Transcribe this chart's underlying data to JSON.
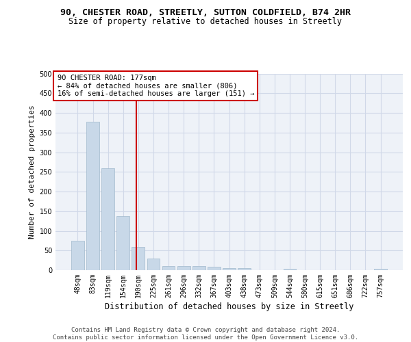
{
  "title1": "90, CHESTER ROAD, STREETLY, SUTTON COLDFIELD, B74 2HR",
  "title2": "Size of property relative to detached houses in Streetly",
  "xlabel": "Distribution of detached houses by size in Streetly",
  "ylabel": "Number of detached properties",
  "categories": [
    "48sqm",
    "83sqm",
    "119sqm",
    "154sqm",
    "190sqm",
    "225sqm",
    "261sqm",
    "296sqm",
    "332sqm",
    "367sqm",
    "403sqm",
    "438sqm",
    "473sqm",
    "509sqm",
    "544sqm",
    "580sqm",
    "615sqm",
    "651sqm",
    "686sqm",
    "722sqm",
    "757sqm"
  ],
  "values": [
    75,
    378,
    260,
    138,
    60,
    30,
    10,
    10,
    10,
    8,
    5,
    5,
    0,
    0,
    4,
    0,
    0,
    0,
    0,
    0,
    4
  ],
  "bar_color": "#c8d8e8",
  "bar_edge_color": "#a0b8cc",
  "grid_color": "#d0d8e8",
  "bg_color": "#eef2f8",
  "vline_color": "#cc0000",
  "annotation_text": "90 CHESTER ROAD: 177sqm\n← 84% of detached houses are smaller (806)\n16% of semi-detached houses are larger (151) →",
  "annotation_box_color": "#ffffff",
  "annotation_box_edge": "#cc0000",
  "footer": "Contains HM Land Registry data © Crown copyright and database right 2024.\nContains public sector information licensed under the Open Government Licence v3.0.",
  "ylim": [
    0,
    500
  ],
  "vline_x": 3.85
}
